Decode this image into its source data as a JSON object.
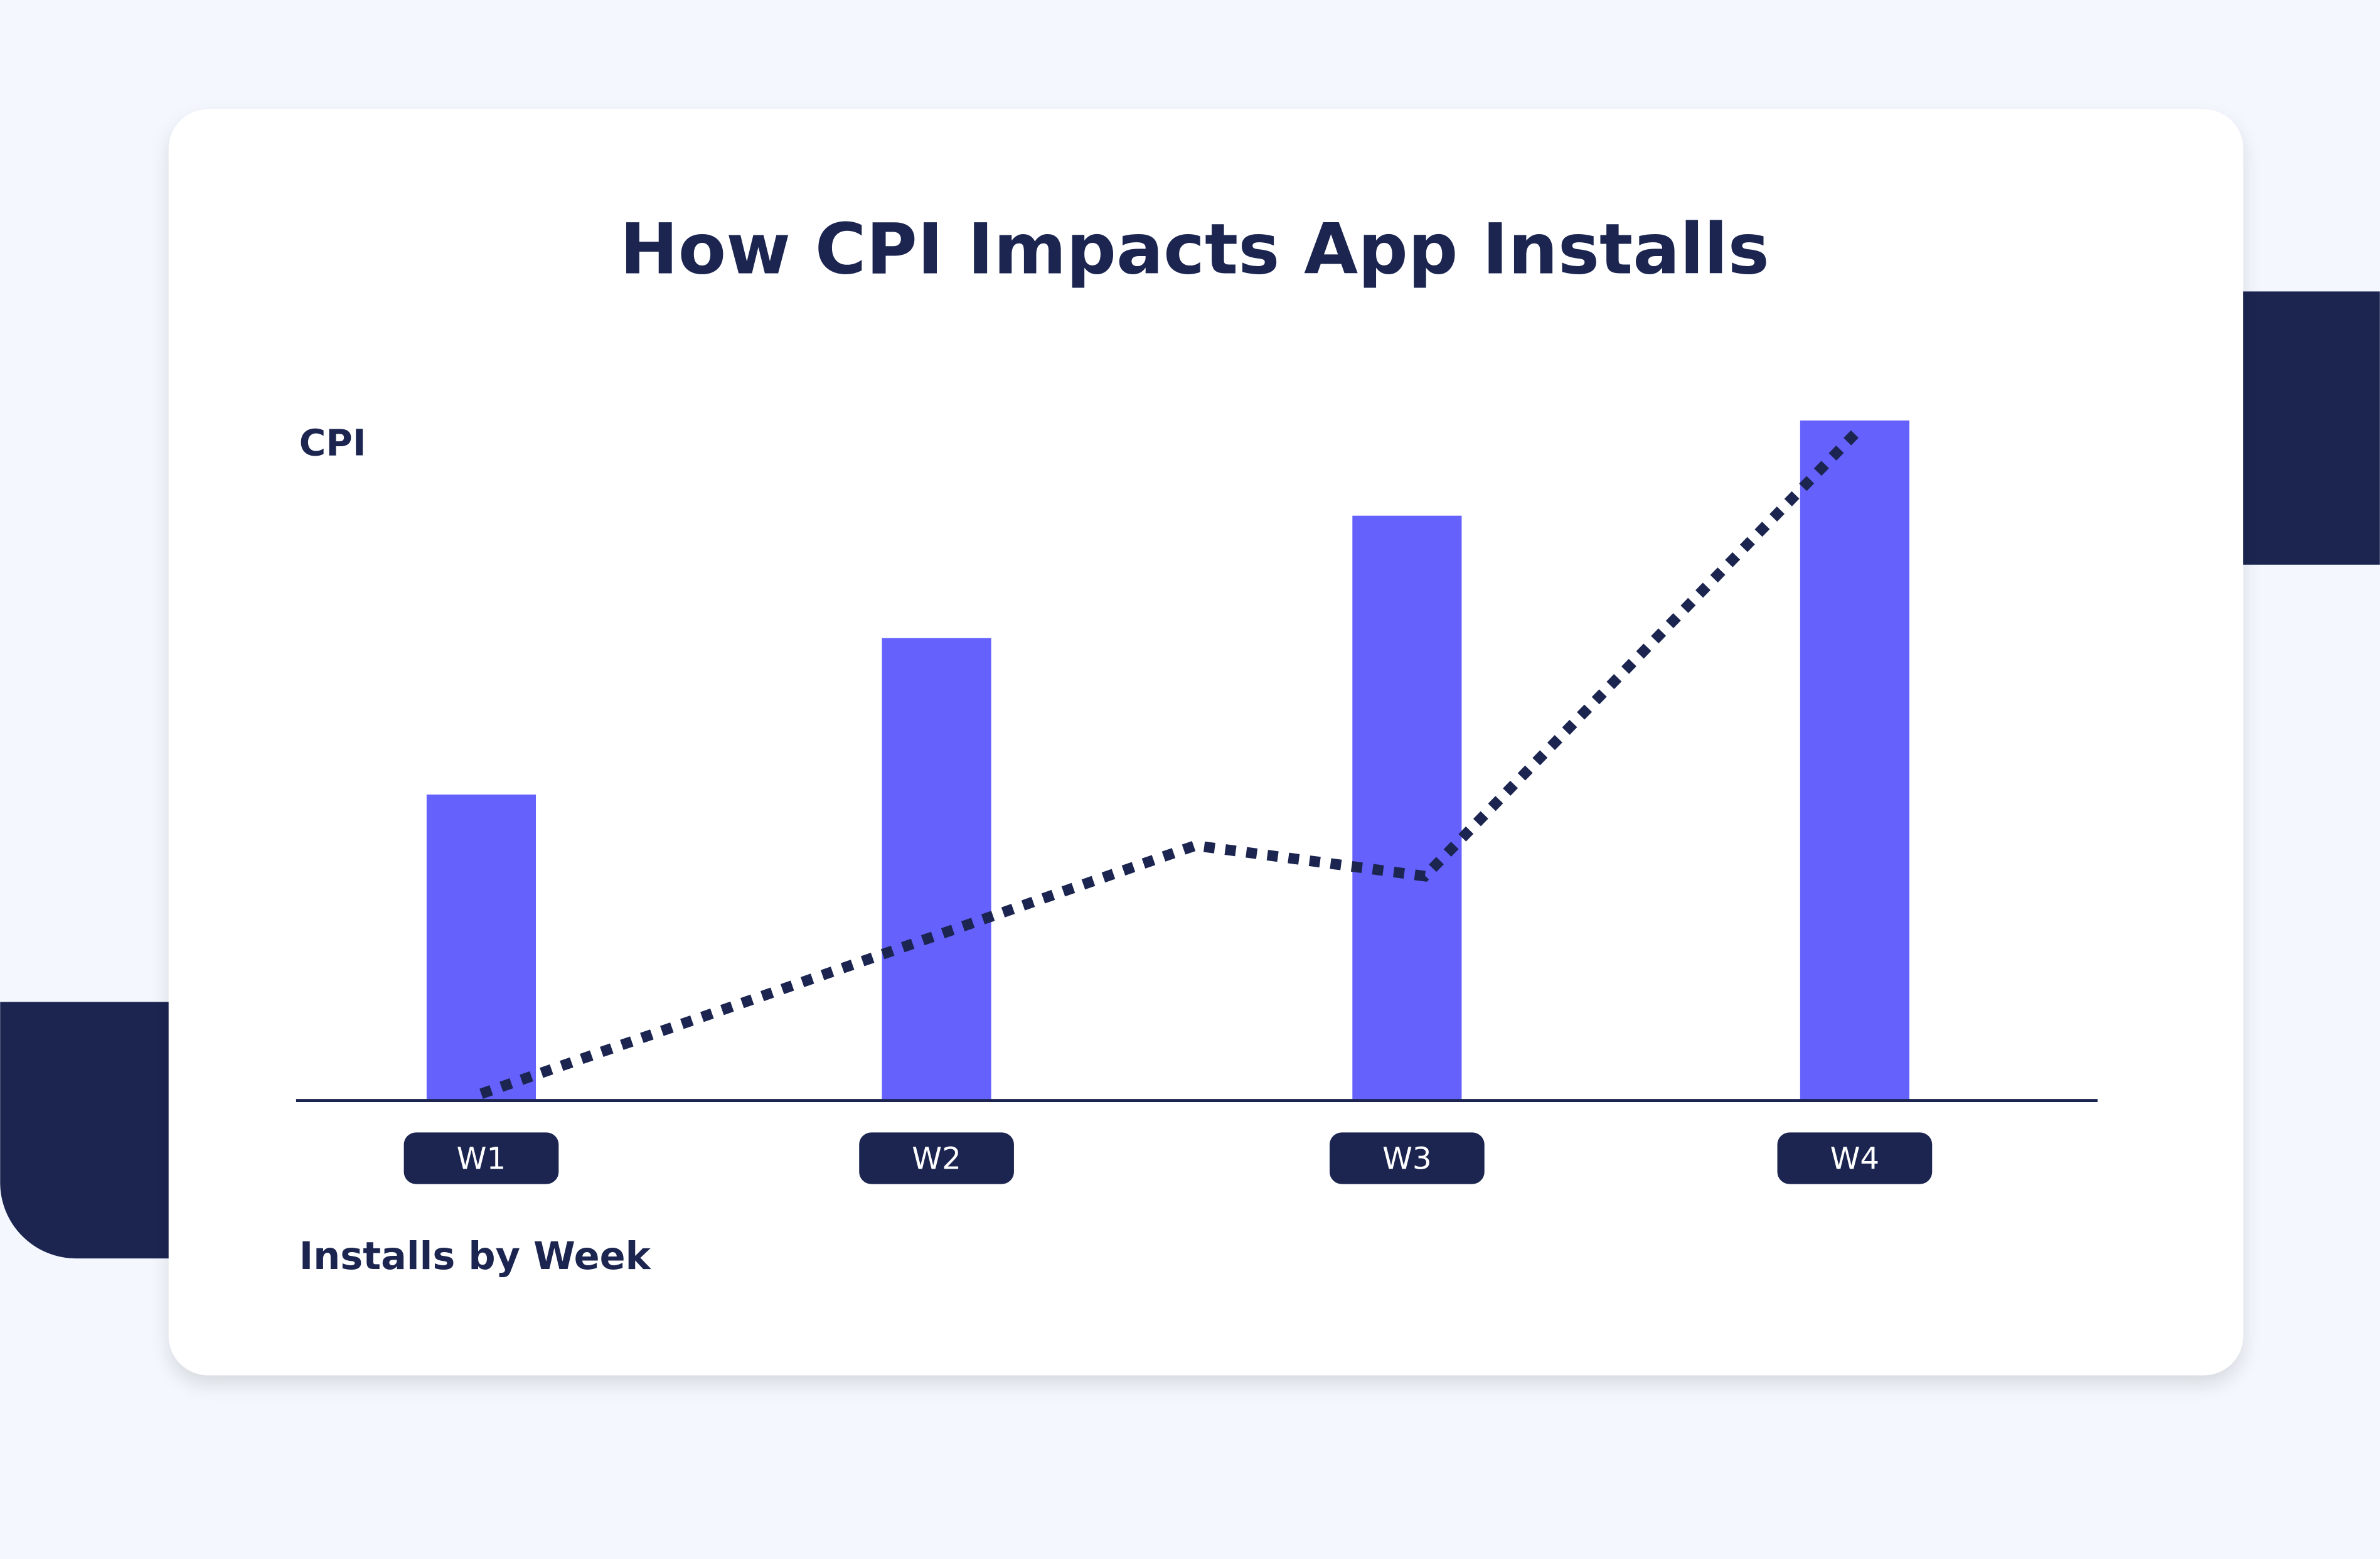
{
  "colors": {
    "background": "#f4f8fe",
    "card": "#ffffff",
    "bar": "#6461fd",
    "navy": "#1b2550",
    "tick_text": "#ffffff"
  },
  "chart_data": {
    "type": "bar",
    "title": "How CPI Impacts App Installs",
    "ylabel": "CPI",
    "xlabel": "Installs by Week",
    "categories": [
      "W1",
      "W2",
      "W3",
      "W4"
    ],
    "values": [
      45,
      68,
      86,
      100
    ],
    "ylim": [
      0,
      100
    ],
    "grid": false,
    "line_overlay": {
      "style": "dotted",
      "points": [
        {
          "x": 1,
          "y": 1
        },
        {
          "x": 2.55,
          "y": 37.5
        },
        {
          "x": 3.04,
          "y": 33
        },
        {
          "x": 4,
          "y": 98
        }
      ]
    }
  }
}
